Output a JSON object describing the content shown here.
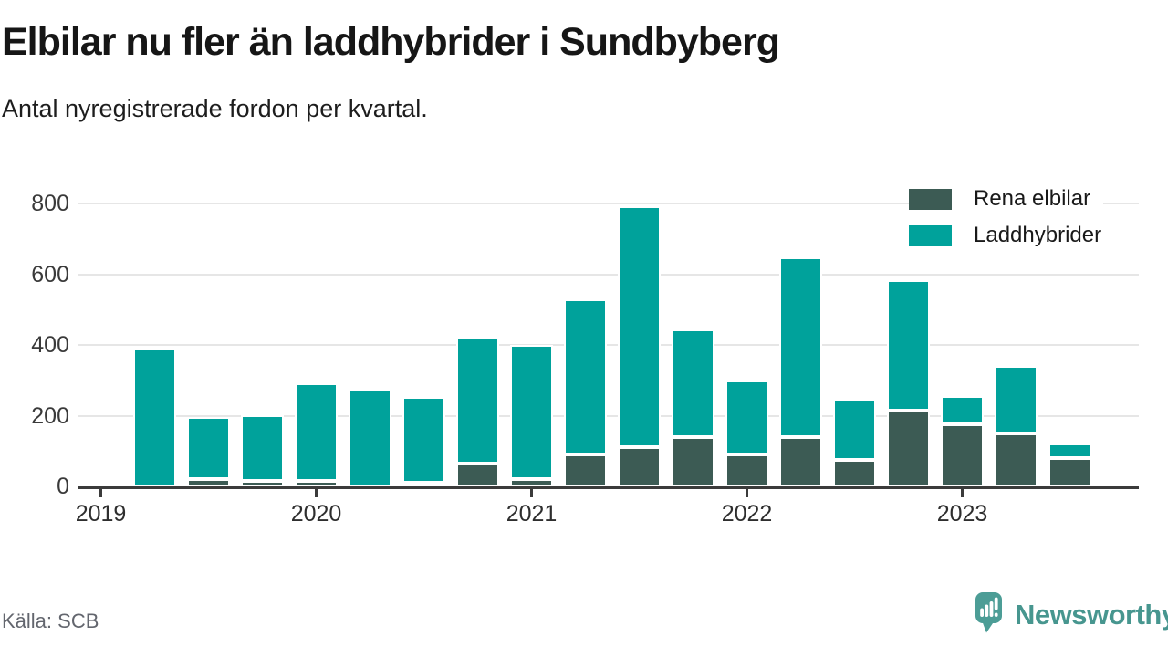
{
  "header": {
    "title": "Elbilar nu fler än laddhybrider i Sundbyberg",
    "subtitle": "Antal nyregistrerade fordon per kvartal."
  },
  "legend": [
    {
      "label": "Rena elbilar",
      "color": "#3C5B54"
    },
    {
      "label": "Laddhybrider",
      "color": "#00A29B"
    }
  ],
  "footer": {
    "source": "Källa: SCB",
    "brand": "Newsworthy",
    "brand_icon": "newsworthy-logo-icon",
    "brand_color": "#4C9D96"
  },
  "colors": {
    "elbilar": "#3C5B54",
    "laddhybrider": "#00A29B",
    "axis": "#3b3b3b",
    "gridline": "#e6e6e6"
  },
  "chart_data": {
    "type": "bar",
    "stacked": true,
    "title": "Elbilar nu fler än laddhybrider i Sundbyberg",
    "subtitle": "Antal nyregistrerade fordon per kvartal.",
    "categories": [
      "2019 Q2",
      "2019 Q3",
      "2019 Q4",
      "2020 Q1",
      "2020 Q2",
      "2020 Q3",
      "2020 Q4",
      "2021 Q1",
      "2021 Q2",
      "2021 Q3",
      "2021 Q4",
      "2022 Q1",
      "2022 Q2",
      "2022 Q3",
      "2022 Q4",
      "2023 Q1",
      "2023 Q2",
      "2023 Q3"
    ],
    "series": [
      {
        "name": "Rena elbilar",
        "color": "#3C5B54",
        "values": [
          0,
          20,
          15,
          15,
          0,
          10,
          65,
          20,
          90,
          110,
          140,
          90,
          140,
          75,
          215,
          175,
          150,
          80
        ]
      },
      {
        "name": "Laddhybrider",
        "color": "#00A29B",
        "values": [
          390,
          175,
          185,
          277,
          277,
          242,
          355,
          380,
          438,
          680,
          305,
          210,
          508,
          173,
          370,
          80,
          190,
          40
        ]
      }
    ],
    "totals": [
      390,
      195,
      200,
      292,
      277,
      252,
      420,
      400,
      528,
      790,
      445,
      300,
      648,
      248,
      585,
      255,
      340,
      120
    ],
    "x_tick_labels": [
      "2019",
      "2020",
      "2021",
      "2022",
      "2023"
    ],
    "x_tick_note": "year ticks sit at Q1 slots; 2019 tick precedes first bar (series starts 2019 Q2)",
    "y_ticks": [
      0,
      200,
      400,
      600,
      800
    ],
    "ylim": [
      0,
      820
    ],
    "grid": true,
    "legend_position": "top-right"
  }
}
